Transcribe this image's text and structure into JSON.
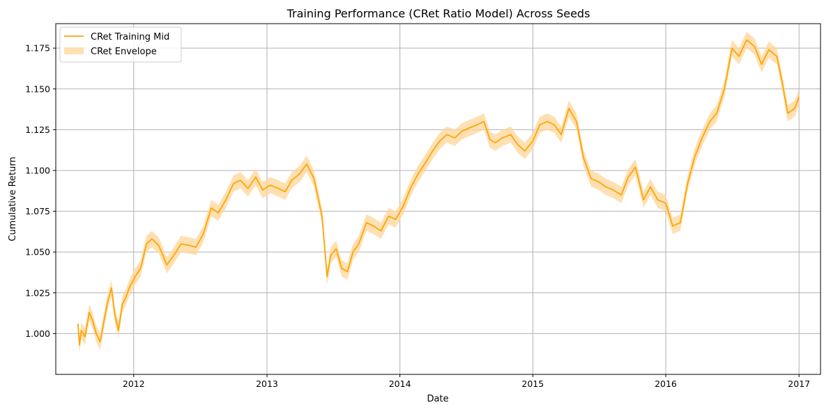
{
  "chart_data": {
    "type": "line",
    "title": "Training Performance (CRet Ratio Model) Across Seeds",
    "xlabel": "Date",
    "ylabel": "Cumulative Return",
    "xlim": [
      "2011-06-01",
      "2017-03-01"
    ],
    "ylim": [
      0.975,
      1.19
    ],
    "x_ticks": [
      "2012",
      "2013",
      "2014",
      "2015",
      "2016",
      "2017"
    ],
    "y_ticks": [
      "1.000",
      "1.025",
      "1.050",
      "1.075",
      "1.100",
      "1.125",
      "1.150",
      "1.175"
    ],
    "grid": true,
    "legend_position": "top-left",
    "colors": {
      "line": "#ffa500",
      "band": "#ffd699"
    },
    "series": [
      {
        "name": "CRet Training Mid",
        "x": [
          "2011-08-01",
          "2011-08-05",
          "2011-08-10",
          "2011-08-20",
          "2011-09-01",
          "2011-09-10",
          "2011-09-20",
          "2011-10-01",
          "2011-10-10",
          "2011-10-20",
          "2011-11-01",
          "2011-11-10",
          "2011-11-20",
          "2011-12-01",
          "2011-12-10",
          "2011-12-20",
          "2012-01-05",
          "2012-01-20",
          "2012-02-05",
          "2012-02-20",
          "2012-03-10",
          "2012-04-01",
          "2012-04-20",
          "2012-05-10",
          "2012-06-01",
          "2012-06-20",
          "2012-07-10",
          "2012-08-01",
          "2012-08-20",
          "2012-09-10",
          "2012-10-01",
          "2012-10-20",
          "2012-11-10",
          "2012-12-01",
          "2012-12-20",
          "2013-01-10",
          "2013-02-01",
          "2013-02-20",
          "2013-03-10",
          "2013-04-01",
          "2013-04-20",
          "2013-05-10",
          "2013-06-01",
          "2013-06-15",
          "2013-06-25",
          "2013-07-10",
          "2013-07-25",
          "2013-08-10",
          "2013-08-25",
          "2013-09-10",
          "2013-10-01",
          "2013-10-20",
          "2013-11-10",
          "2013-12-01",
          "2013-12-20",
          "2014-01-10",
          "2014-02-01",
          "2014-02-20",
          "2014-03-10",
          "2014-04-01",
          "2014-04-20",
          "2014-05-10",
          "2014-06-01",
          "2014-06-20",
          "2014-07-10",
          "2014-08-01",
          "2014-08-20",
          "2014-09-05",
          "2014-09-20",
          "2014-10-10",
          "2014-11-01",
          "2014-11-20",
          "2014-12-10",
          "2015-01-01",
          "2015-01-20",
          "2015-02-10",
          "2015-03-01",
          "2015-03-20",
          "2015-04-10",
          "2015-05-01",
          "2015-05-20",
          "2015-06-10",
          "2015-07-01",
          "2015-07-20",
          "2015-08-10",
          "2015-09-01",
          "2015-09-20",
          "2015-10-10",
          "2015-11-01",
          "2015-11-20",
          "2015-12-10",
          "2016-01-01",
          "2016-01-20",
          "2016-02-10",
          "2016-03-01",
          "2016-03-20",
          "2016-04-10",
          "2016-05-01",
          "2016-05-20",
          "2016-06-10",
          "2016-07-01",
          "2016-07-20",
          "2016-08-10",
          "2016-09-01",
          "2016-09-20",
          "2016-10-10",
          "2016-11-01",
          "2016-11-15",
          "2016-12-01",
          "2016-12-20",
          "2017-01-01"
        ],
        "values": [
          1.006,
          0.993,
          1.002,
          0.998,
          1.013,
          1.008,
          1.0,
          0.995,
          1.006,
          1.018,
          1.028,
          1.012,
          1.002,
          1.018,
          1.022,
          1.028,
          1.035,
          1.04,
          1.055,
          1.058,
          1.054,
          1.042,
          1.048,
          1.055,
          1.054,
          1.053,
          1.061,
          1.077,
          1.074,
          1.082,
          1.092,
          1.094,
          1.089,
          1.096,
          1.088,
          1.091,
          1.089,
          1.087,
          1.094,
          1.098,
          1.104,
          1.095,
          1.072,
          1.035,
          1.048,
          1.052,
          1.04,
          1.038,
          1.05,
          1.055,
          1.068,
          1.066,
          1.063,
          1.072,
          1.07,
          1.078,
          1.09,
          1.098,
          1.104,
          1.112,
          1.118,
          1.122,
          1.12,
          1.124,
          1.126,
          1.128,
          1.13,
          1.119,
          1.117,
          1.12,
          1.122,
          1.116,
          1.112,
          1.118,
          1.128,
          1.13,
          1.128,
          1.122,
          1.138,
          1.13,
          1.108,
          1.095,
          1.093,
          1.09,
          1.088,
          1.085,
          1.096,
          1.102,
          1.082,
          1.09,
          1.082,
          1.08,
          1.066,
          1.068,
          1.092,
          1.108,
          1.12,
          1.13,
          1.135,
          1.15,
          1.175,
          1.17,
          1.18,
          1.176,
          1.165,
          1.174,
          1.17,
          1.155,
          1.135,
          1.138,
          1.145
        ]
      },
      {
        "name": "CRet Envelope",
        "halfwidth": 0.005
      }
    ]
  }
}
